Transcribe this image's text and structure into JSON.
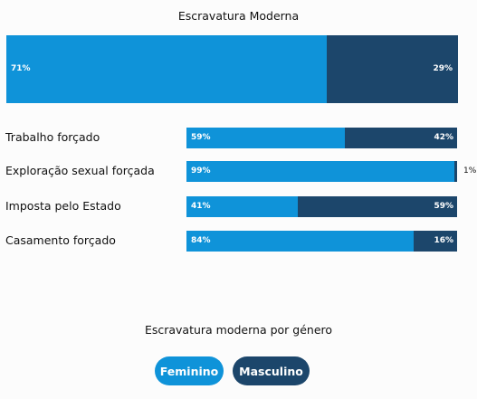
{
  "chart_data": {
    "type": "bar",
    "orientation": "horizontal",
    "stacked": true,
    "percent": true,
    "title": "Escravatura Moderna",
    "total": {
      "values": [
        71,
        29
      ],
      "labels": [
        "71%",
        "29%"
      ]
    },
    "categories": [
      "Trabalho forçado",
      "Exploração sexual forçada",
      "Imposta pelo Estado",
      "Casamento forçado"
    ],
    "series": [
      {
        "name": "Feminino",
        "values": [
          59,
          99,
          41,
          84
        ],
        "labels": [
          "59%",
          "99%",
          "41%",
          "84%"
        ]
      },
      {
        "name": "Masculino",
        "values": [
          42,
          1,
          59,
          16
        ],
        "labels": [
          "42%",
          "1%",
          "59%",
          "16%"
        ]
      }
    ],
    "colors": [
      "#0f93d9",
      "#1c466b"
    ],
    "legend_title": "Escravatura moderna por género",
    "legend_position": "bottom-center"
  }
}
